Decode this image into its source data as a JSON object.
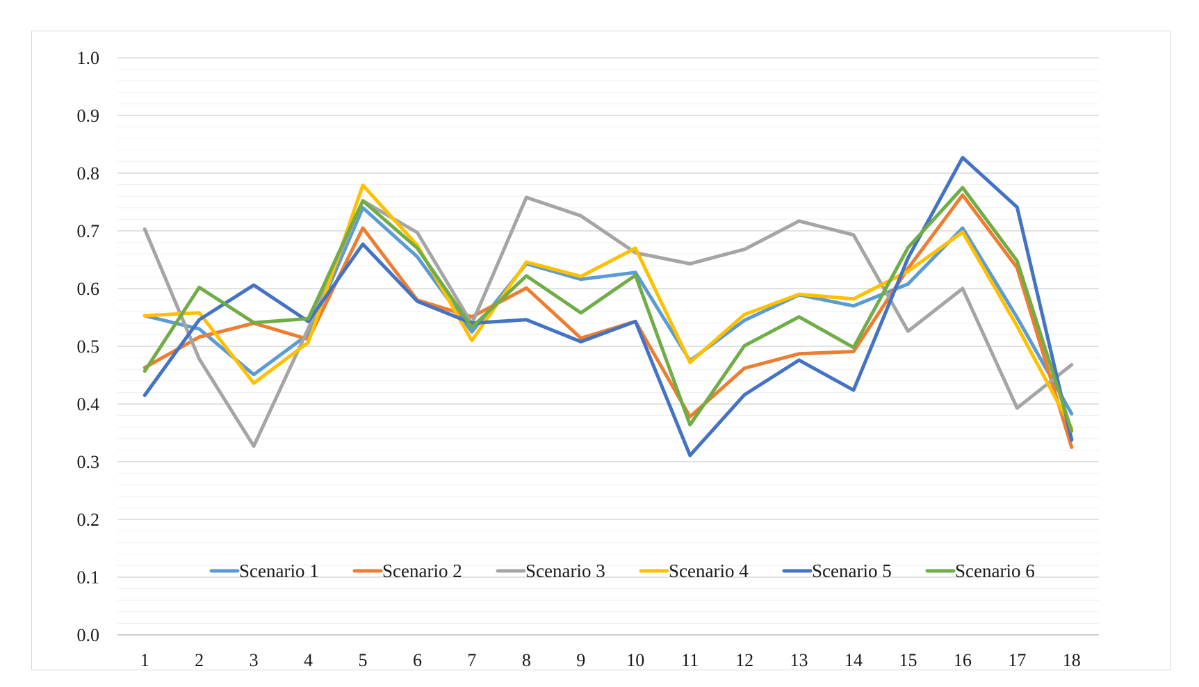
{
  "chart_data": {
    "type": "line",
    "title": "",
    "xlabel": "",
    "ylabel": "",
    "ylim": [
      0.0,
      1.0
    ],
    "y_ticks": [
      "0.0",
      "0.1",
      "0.2",
      "0.3",
      "0.4",
      "0.5",
      "0.6",
      "0.7",
      "0.8",
      "0.9",
      "1.0"
    ],
    "y_tick_values": [
      0.0,
      0.1,
      0.2,
      0.3,
      0.4,
      0.5,
      0.6,
      0.7,
      0.8,
      0.9,
      1.0
    ],
    "minor_grid_step": 0.02,
    "grid": true,
    "legend_position": "bottom-inside",
    "categories": [
      "1",
      "2",
      "3",
      "4",
      "5",
      "6",
      "7",
      "8",
      "9",
      "10",
      "11",
      "12",
      "13",
      "14",
      "15",
      "16",
      "17",
      "18"
    ],
    "series": [
      {
        "name": "Scenario 1",
        "color": "#5b9bd5",
        "values": [
          0.553,
          0.53,
          0.451,
          0.521,
          0.74,
          0.655,
          0.525,
          0.643,
          0.616,
          0.628,
          0.475,
          0.545,
          0.589,
          0.57,
          0.608,
          0.705,
          0.55,
          0.383
        ]
      },
      {
        "name": "Scenario 2",
        "color": "#ed7d31",
        "values": [
          0.463,
          0.516,
          0.54,
          0.512,
          0.705,
          0.58,
          0.551,
          0.601,
          0.514,
          0.543,
          0.378,
          0.462,
          0.487,
          0.491,
          0.635,
          0.762,
          0.636,
          0.325
        ]
      },
      {
        "name": "Scenario 3",
        "color": "#a5a5a5",
        "values": [
          0.703,
          0.478,
          0.327,
          0.531,
          0.752,
          0.697,
          0.539,
          0.758,
          0.726,
          0.662,
          0.643,
          0.668,
          0.717,
          0.693,
          0.526,
          0.6,
          0.393,
          0.468
        ]
      },
      {
        "name": "Scenario 4",
        "color": "#ffc000",
        "values": [
          0.553,
          0.558,
          0.436,
          0.507,
          0.779,
          0.675,
          0.51,
          0.646,
          0.621,
          0.67,
          0.472,
          0.555,
          0.59,
          0.582,
          0.63,
          0.698,
          0.535,
          0.358
        ]
      },
      {
        "name": "Scenario 5",
        "color": "#4472c4",
        "values": [
          0.415,
          0.546,
          0.606,
          0.543,
          0.677,
          0.578,
          0.54,
          0.546,
          0.508,
          0.543,
          0.311,
          0.416,
          0.476,
          0.424,
          0.653,
          0.827,
          0.741,
          0.338
        ]
      },
      {
        "name": "Scenario 6",
        "color": "#70ad47",
        "values": [
          0.457,
          0.602,
          0.541,
          0.548,
          0.752,
          0.67,
          0.533,
          0.622,
          0.558,
          0.623,
          0.364,
          0.501,
          0.551,
          0.498,
          0.671,
          0.775,
          0.648,
          0.353
        ]
      }
    ]
  }
}
